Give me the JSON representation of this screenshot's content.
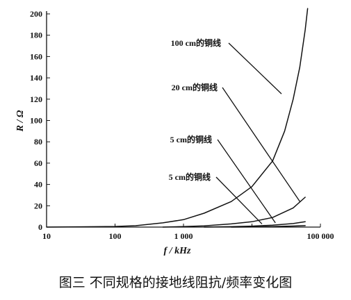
{
  "chart_data": {
    "type": "line",
    "xlabel": "f / kHz",
    "ylabel": "R / Ω",
    "xscale": "log",
    "xlim": [
      10,
      100000
    ],
    "ylim": [
      0,
      200
    ],
    "x_ticks": [
      {
        "value": 10,
        "label": "10"
      },
      {
        "value": 100,
        "label": "100"
      },
      {
        "value": 1000,
        "label": "1 000"
      },
      {
        "value": 100000,
        "label": "100 000"
      }
    ],
    "y_ticks": [
      {
        "value": 0,
        "label": "0"
      },
      {
        "value": 20,
        "label": "20"
      },
      {
        "value": 40,
        "label": "40"
      },
      {
        "value": 60,
        "label": "60"
      },
      {
        "value": 80,
        "label": "80"
      },
      {
        "value": 100,
        "label": "100"
      },
      {
        "value": 120,
        "label": "120"
      },
      {
        "value": 140,
        "label": "140"
      },
      {
        "value": 160,
        "label": "160"
      },
      {
        "value": 180,
        "label": "180"
      },
      {
        "value": 200,
        "label": "200"
      }
    ],
    "grid": false,
    "series": [
      {
        "name": "100 cm的铜线",
        "x": [
          10,
          100,
          200,
          500,
          1000,
          2000,
          5000,
          10000,
          20000,
          30000,
          40000,
          50000,
          60000,
          65000
        ],
        "y": [
          0,
          0.6,
          1.3,
          4,
          7,
          13,
          24,
          38,
          62,
          90,
          120,
          150,
          185,
          205
        ]
      },
      {
        "name": "20 cm的铜线",
        "x": [
          500,
          1000,
          2000,
          5000,
          10000,
          20000,
          40000,
          60000
        ],
        "y": [
          0,
          0.5,
          1.2,
          3,
          5,
          9,
          18,
          28
        ]
      },
      {
        "name": "5 cm的铜线",
        "x": [
          2000,
          5000,
          10000,
          20000,
          40000,
          60000
        ],
        "y": [
          0,
          0.4,
          0.9,
          1.8,
          3.3,
          5
        ]
      },
      {
        "name": "5 cm的铜线",
        "x": [
          5000,
          10000,
          20000,
          40000,
          60000
        ],
        "y": [
          0,
          0.2,
          0.5,
          1,
          1.4
        ]
      }
    ],
    "annotations": [
      {
        "text": "100 cm的铜线",
        "pointer_to": [
          27000,
          125
        ]
      },
      {
        "text": "20 cm的铜线",
        "pointer_to": [
          50000,
          24
        ]
      },
      {
        "text": "5 cm的铜线",
        "pointer_to": [
          22000,
          4
        ]
      },
      {
        "text": "5 cm的铜线",
        "pointer_to": [
          14000,
          3
        ]
      }
    ]
  },
  "caption": "图三 不同规格的接地线阻抗/频率变化图"
}
